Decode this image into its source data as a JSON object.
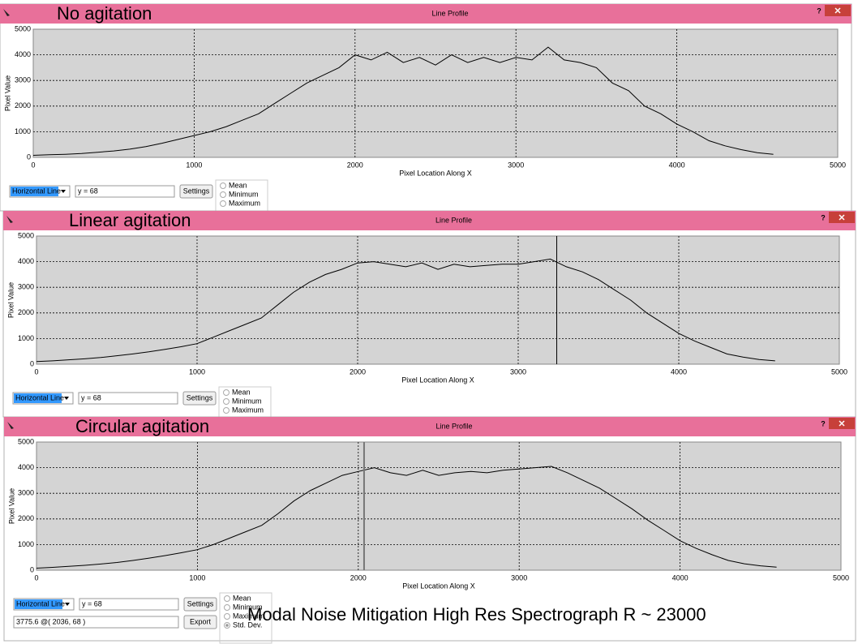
{
  "help_button": "?",
  "caption": "Modal Noise Mitigation High Res Spectrograph R ~ 23000",
  "windows": [
    {
      "title": "Line Profile",
      "label": "No agitation",
      "mode": "Horizontal Line",
      "field": "y = 68",
      "buttons": [
        "Settings"
      ],
      "options": [
        "Mean",
        "Minimum",
        "Maximum"
      ]
    },
    {
      "title": "Line Profile",
      "label": "Linear agitation",
      "mode": "Horizontal Line",
      "field": "y = 68",
      "buttons": [
        "Settings"
      ],
      "options": [
        "Mean",
        "Minimum",
        "Maximum"
      ]
    },
    {
      "title": "Line Profile",
      "label": "Circular agitation",
      "mode": "Horizontal Line",
      "field": "y = 68",
      "buttons": [
        "Settings",
        "Export"
      ],
      "readout": "3775.6 @( 2036, 68 )",
      "options": [
        "Mean",
        "Minimum",
        "Maximum",
        "Std. Dev."
      ],
      "selected_option": "Std. Dev."
    }
  ],
  "chart_data": [
    {
      "type": "line",
      "x_label": "Pixel Location Along X",
      "y_label": "Pixel Value",
      "xlim": [
        0,
        5000
      ],
      "ylim": [
        0,
        5000
      ],
      "xticks": [
        0,
        1000,
        2000,
        3000,
        4000,
        5000
      ],
      "yticks": [
        0,
        1000,
        2000,
        3000,
        4000,
        5000
      ],
      "grid": true,
      "x": [
        0,
        100,
        200,
        300,
        400,
        500,
        600,
        700,
        800,
        900,
        1000,
        1100,
        1200,
        1300,
        1400,
        1500,
        1600,
        1700,
        1800,
        1900,
        2000,
        2100,
        2200,
        2300,
        2400,
        2500,
        2600,
        2700,
        2800,
        2900,
        3000,
        3100,
        3200,
        3300,
        3400,
        3500,
        3600,
        3700,
        3800,
        3900,
        4000,
        4100,
        4200,
        4300,
        4400,
        4500,
        4600
      ],
      "series": [
        {
          "color": "#000000",
          "values": [
            80,
            100,
            120,
            150,
            200,
            250,
            320,
            420,
            550,
            700,
            850,
            1000,
            1200,
            1450,
            1700,
            2100,
            2500,
            2900,
            3200,
            3500,
            4000,
            3800,
            4100,
            3700,
            3900,
            3600,
            4000,
            3700,
            3900,
            3700,
            3900,
            3800,
            4300,
            3800,
            3700,
            3500,
            2900,
            2600,
            2000,
            1700,
            1300,
            1000,
            650,
            450,
            300,
            180,
            120
          ]
        }
      ]
    },
    {
      "type": "line",
      "x_label": "Pixel Location Along X",
      "y_label": "Pixel Value",
      "xlim": [
        0,
        5000
      ],
      "ylim": [
        0,
        5000
      ],
      "xticks": [
        0,
        1000,
        2000,
        3000,
        4000,
        5000
      ],
      "yticks": [
        0,
        1000,
        2000,
        3000,
        4000,
        5000
      ],
      "grid": true,
      "cursor_x": 3240,
      "x": [
        0,
        100,
        200,
        300,
        400,
        500,
        600,
        700,
        800,
        900,
        1000,
        1100,
        1200,
        1300,
        1400,
        1500,
        1600,
        1700,
        1800,
        1900,
        2000,
        2100,
        2200,
        2300,
        2400,
        2500,
        2600,
        2700,
        2800,
        2900,
        3000,
        3100,
        3200,
        3300,
        3400,
        3500,
        3600,
        3700,
        3800,
        3900,
        4000,
        4100,
        4200,
        4300,
        4400,
        4500,
        4600
      ],
      "series": [
        {
          "color": "#000000",
          "values": [
            100,
            130,
            170,
            210,
            260,
            330,
            400,
            480,
            580,
            680,
            800,
            1050,
            1300,
            1550,
            1800,
            2300,
            2800,
            3200,
            3500,
            3700,
            3950,
            4000,
            3900,
            3800,
            3950,
            3700,
            3900,
            3800,
            3850,
            3900,
            3900,
            4000,
            4100,
            3800,
            3600,
            3300,
            2900,
            2500,
            2000,
            1600,
            1200,
            900,
            650,
            400,
            280,
            180,
            130
          ]
        }
      ]
    },
    {
      "type": "line",
      "x_label": "Pixel Location Along X",
      "y_label": "Pixel Value",
      "xlim": [
        0,
        5000
      ],
      "ylim": [
        0,
        5000
      ],
      "xticks": [
        0,
        1000,
        2000,
        3000,
        4000,
        5000
      ],
      "yticks": [
        0,
        1000,
        2000,
        3000,
        4000,
        5000
      ],
      "grid": true,
      "cursor_x": 2036,
      "x": [
        0,
        100,
        200,
        300,
        400,
        500,
        600,
        700,
        800,
        900,
        1000,
        1100,
        1200,
        1300,
        1400,
        1500,
        1600,
        1700,
        1800,
        1900,
        2000,
        2100,
        2200,
        2300,
        2400,
        2500,
        2600,
        2700,
        2800,
        2900,
        3000,
        3100,
        3200,
        3300,
        3400,
        3500,
        3600,
        3700,
        3800,
        3900,
        4000,
        4100,
        4200,
        4300,
        4400,
        4500,
        4600
      ],
      "series": [
        {
          "color": "#000000",
          "values": [
            80,
            110,
            150,
            190,
            240,
            300,
            380,
            470,
            570,
            680,
            800,
            1000,
            1250,
            1500,
            1750,
            2200,
            2700,
            3100,
            3400,
            3700,
            3850,
            4000,
            3800,
            3700,
            3900,
            3700,
            3800,
            3850,
            3800,
            3900,
            3950,
            4000,
            4050,
            3800,
            3500,
            3200,
            2800,
            2400,
            1950,
            1550,
            1150,
            850,
            600,
            380,
            250,
            170,
            120
          ]
        }
      ]
    }
  ]
}
